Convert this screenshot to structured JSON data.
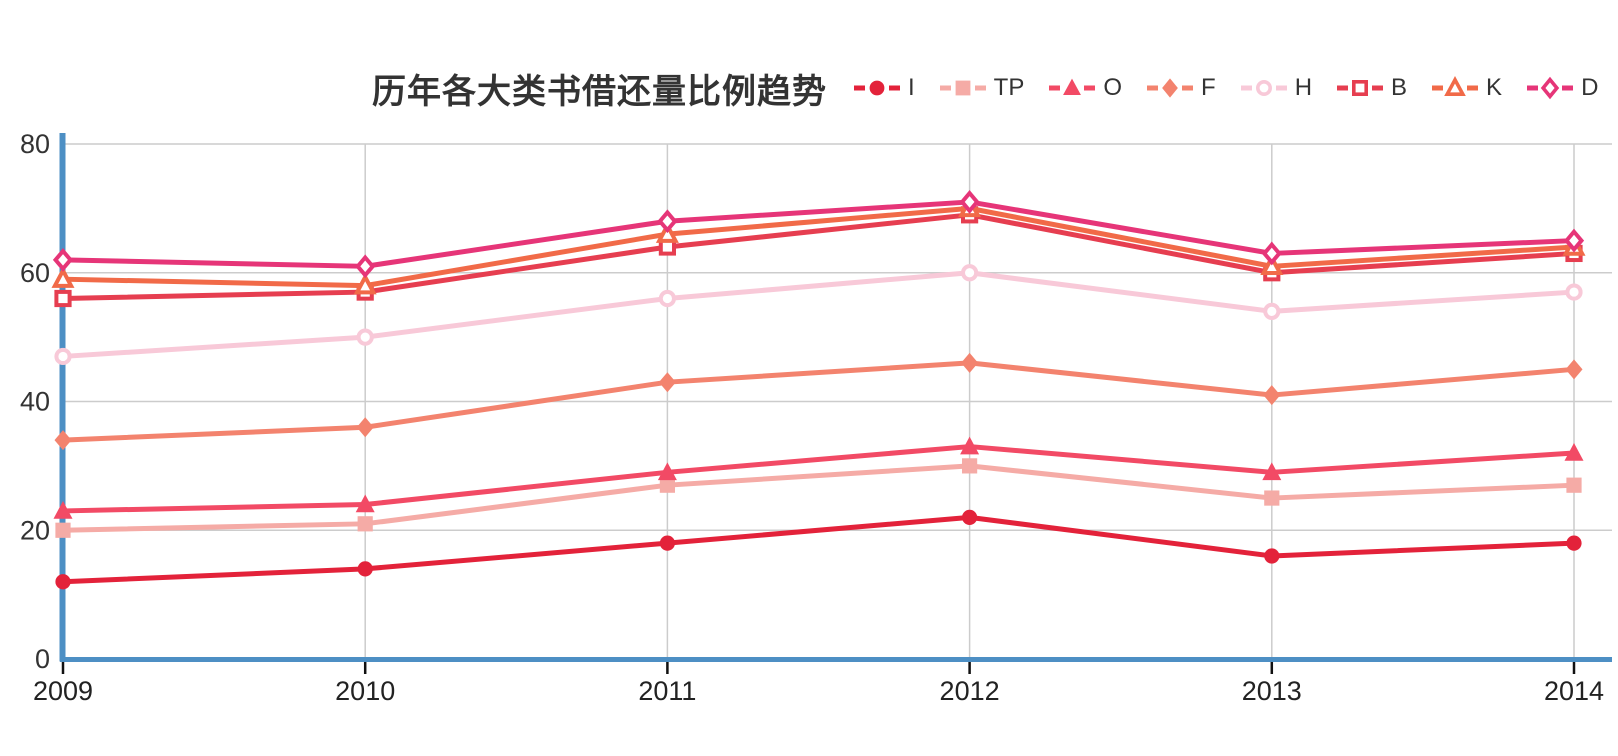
{
  "chart": {
    "title": "历年各大类书借还量比例趋势"
  },
  "chart_data": {
    "type": "line",
    "title": "历年各大类书借还量比例趋势",
    "categories": [
      "2009",
      "2010",
      "2011",
      "2012",
      "2013",
      "2014"
    ],
    "series": [
      {
        "name": "I",
        "marker": "circle",
        "filled": true,
        "color": "#e3223a",
        "values": [
          12,
          14,
          18,
          22,
          16,
          18
        ]
      },
      {
        "name": "TP",
        "marker": "square",
        "filled": true,
        "color": "#f5aba6",
        "values": [
          20,
          21,
          27,
          30,
          25,
          27
        ]
      },
      {
        "name": "O",
        "marker": "triangle",
        "filled": true,
        "color": "#f24a65",
        "values": [
          23,
          24,
          29,
          33,
          29,
          32
        ]
      },
      {
        "name": "F",
        "marker": "diamond",
        "filled": true,
        "color": "#f3836e",
        "values": [
          34,
          36,
          43,
          46,
          41,
          45
        ]
      },
      {
        "name": "H",
        "marker": "circle",
        "filled": false,
        "color": "#f8c9d8",
        "values": [
          47,
          50,
          56,
          60,
          54,
          57
        ]
      },
      {
        "name": "B",
        "marker": "square",
        "filled": false,
        "color": "#e63e50",
        "values": [
          56,
          57,
          64,
          69,
          60,
          63
        ]
      },
      {
        "name": "K",
        "marker": "triangle",
        "filled": false,
        "color": "#f16a48",
        "values": [
          59,
          58,
          66,
          70,
          61,
          64
        ]
      },
      {
        "name": "D",
        "marker": "diamond",
        "filled": false,
        "color": "#e63578",
        "values": [
          62,
          61,
          68,
          71,
          63,
          65
        ]
      }
    ],
    "xlabel": "",
    "ylabel": "",
    "ylim": [
      0,
      80
    ],
    "yticks": [
      0,
      20,
      40,
      60,
      80
    ],
    "grid": true,
    "legend_position": "top-right",
    "colors": {
      "axis": "#4d8fc4",
      "grid": "#cccccc",
      "tick": "#111111",
      "text": "#333333",
      "background": "#ffffff"
    }
  }
}
